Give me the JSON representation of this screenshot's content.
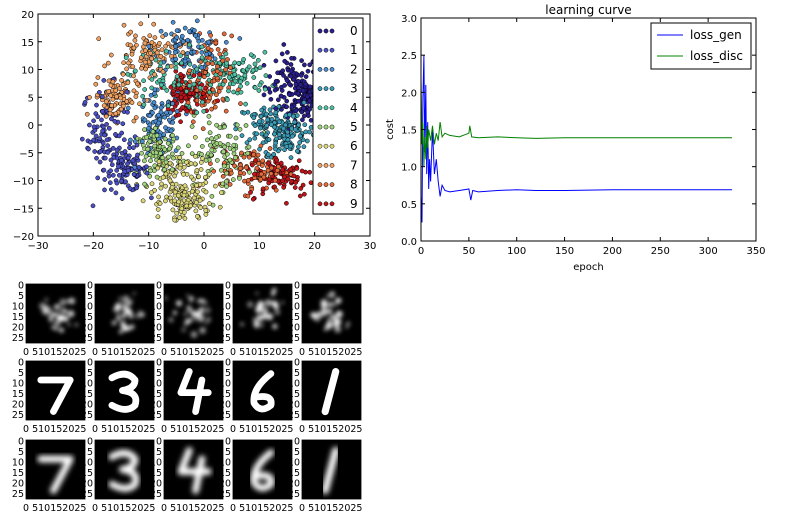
{
  "chart_data": [
    {
      "type": "scatter",
      "title": "",
      "xlabel": "",
      "ylabel": "",
      "xlim": [
        -30,
        30
      ],
      "ylim": [
        -20,
        20
      ],
      "xticks": [
        "−30",
        "−20",
        "−10",
        "0",
        "10",
        "20",
        "30"
      ],
      "yticks": [
        "20",
        "15",
        "10",
        "5",
        "0",
        "−5",
        "−10",
        "−15",
        "−20"
      ],
      "legend_position": "top-right",
      "series": [
        {
          "name": "0",
          "color": "#2a1f8f",
          "clusters": [
            [
              16,
              7,
              2.5,
              3
            ],
            [
              18,
              5,
              1.5,
              2
            ]
          ]
        },
        {
          "name": "1",
          "color": "#4b4fc4",
          "clusters": [
            [
              -18,
              -1,
              2.0,
              4
            ],
            [
              -14,
              -8,
              2,
              2
            ]
          ]
        },
        {
          "name": "2",
          "color": "#4a8ccf",
          "clusters": [
            [
              -8,
              0,
              2,
              3
            ],
            [
              -3,
              14,
              3,
              2
            ]
          ]
        },
        {
          "name": "3",
          "color": "#3b9bb5",
          "clusters": [
            [
              12,
              0,
              3,
              2
            ],
            [
              15,
              -2,
              2,
              2
            ]
          ]
        },
        {
          "name": "4",
          "color": "#4fc1a3",
          "clusters": [
            [
              -6,
              8,
              4,
              3
            ],
            [
              6,
              9,
              3,
              2
            ]
          ]
        },
        {
          "name": "5",
          "color": "#9fd47c",
          "clusters": [
            [
              3,
              -5,
              3,
              3
            ],
            [
              -8,
              -5,
              2,
              2
            ]
          ]
        },
        {
          "name": "6",
          "color": "#dcd67a",
          "clusters": [
            [
              -5,
              -10,
              3,
              3
            ],
            [
              -3,
              -14,
              2,
              2
            ]
          ]
        },
        {
          "name": "7",
          "color": "#f0a060",
          "clusters": [
            [
              -10,
              13,
              3,
              2
            ],
            [
              -16,
              5,
              2,
              2
            ]
          ]
        },
        {
          "name": "8",
          "color": "#e36a3a",
          "clusters": [
            [
              1,
              8,
              2,
              4
            ],
            [
              9,
              -8,
              3,
              2
            ]
          ]
        },
        {
          "name": "9",
          "color": "#c0141a",
          "clusters": [
            [
              14,
              -9,
              3,
              2
            ],
            [
              -3,
              6,
              2,
              2
            ]
          ]
        }
      ],
      "points_per_cluster": 95
    },
    {
      "type": "line",
      "title": "learning curve",
      "xlabel": "epoch",
      "ylabel": "cost",
      "xlim": [
        0,
        350
      ],
      "ylim": [
        0,
        3.0
      ],
      "xticks": [
        "0",
        "50",
        "100",
        "150",
        "200",
        "250",
        "300",
        "350"
      ],
      "yticks": [
        "3.0",
        "2.5",
        "2.0",
        "1.5",
        "1.0",
        "0.5",
        "0.0"
      ],
      "legend_position": "top-right",
      "series": [
        {
          "name": "loss_gen",
          "color": "#0000ff",
          "points": [
            [
              0,
              0.6
            ],
            [
              1,
              0.25
            ],
            [
              2,
              1.9
            ],
            [
              3,
              2.5
            ],
            [
              4,
              1.2
            ],
            [
              5,
              2.1
            ],
            [
              6,
              0.9
            ],
            [
              7,
              1.6
            ],
            [
              8,
              0.7
            ],
            [
              9,
              1.1
            ],
            [
              10,
              0.8
            ],
            [
              12,
              1.5
            ],
            [
              14,
              0.9
            ],
            [
              16,
              1.1
            ],
            [
              18,
              0.8
            ],
            [
              20,
              0.6
            ],
            [
              22,
              0.75
            ],
            [
              25,
              0.68
            ],
            [
              30,
              0.66
            ],
            [
              40,
              0.68
            ],
            [
              50,
              0.7
            ],
            [
              52,
              0.55
            ],
            [
              54,
              0.68
            ],
            [
              60,
              0.66
            ],
            [
              80,
              0.68
            ],
            [
              100,
              0.69
            ],
            [
              120,
              0.68
            ],
            [
              150,
              0.68
            ],
            [
              200,
              0.69
            ],
            [
              250,
              0.69
            ],
            [
              300,
              0.69
            ],
            [
              325,
              0.69
            ]
          ]
        },
        {
          "name": "loss_disc",
          "color": "#008000",
          "points": [
            [
              0,
              2.2
            ],
            [
              1,
              1.3
            ],
            [
              2,
              1.6
            ],
            [
              3,
              1.0
            ],
            [
              4,
              1.4
            ],
            [
              5,
              1.1
            ],
            [
              6,
              1.55
            ],
            [
              7,
              1.25
            ],
            [
              8,
              1.5
            ],
            [
              10,
              1.35
            ],
            [
              12,
              1.55
            ],
            [
              14,
              1.3
            ],
            [
              16,
              1.45
            ],
            [
              18,
              1.35
            ],
            [
              20,
              1.6
            ],
            [
              22,
              1.4
            ],
            [
              25,
              1.45
            ],
            [
              30,
              1.42
            ],
            [
              40,
              1.4
            ],
            [
              50,
              1.45
            ],
            [
              51,
              1.55
            ],
            [
              53,
              1.4
            ],
            [
              60,
              1.39
            ],
            [
              80,
              1.4
            ],
            [
              100,
              1.39
            ],
            [
              120,
              1.38
            ],
            [
              150,
              1.39
            ],
            [
              200,
              1.39
            ],
            [
              250,
              1.39
            ],
            [
              300,
              1.39
            ],
            [
              325,
              1.39
            ]
          ]
        }
      ]
    },
    {
      "type": "image_grid",
      "rows": 3,
      "cols": 5,
      "xtick_labels": [
        "0",
        "5",
        "10",
        "15",
        "20",
        "25"
      ],
      "ytick_labels": [
        "0",
        "5",
        "10",
        "15",
        "20",
        "25"
      ],
      "digits": [
        [
          "noise",
          "noise",
          "noise",
          "noise",
          "noise"
        ],
        [
          "7",
          "3",
          "4",
          "6",
          "1"
        ],
        [
          "7",
          "3",
          "4",
          "6",
          "1"
        ]
      ]
    }
  ]
}
